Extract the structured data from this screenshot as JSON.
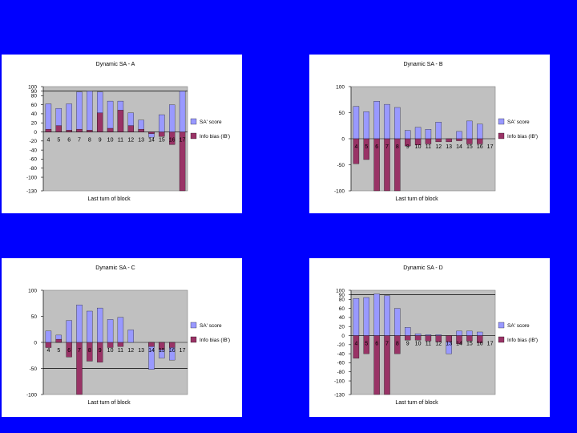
{
  "background_color": "#0000FF",
  "plot_bg": "#C0C0C0",
  "sa_color": "#9999FF",
  "ib_color": "#993366",
  "chart_data": [
    {
      "type": "bar",
      "title": "Dynamic SA - A",
      "xlabel": "Last turn of block",
      "ylabel": "",
      "ylim": [
        -130,
        100
      ],
      "yticks": [
        100,
        90,
        80,
        60,
        40,
        20,
        0,
        -20,
        -40,
        -60,
        -80,
        -100,
        -130
      ],
      "ref_line": 90,
      "categories": [
        "4",
        "5",
        "6",
        "7",
        "8",
        "9",
        "10",
        "11",
        "12",
        "13",
        "14",
        "15",
        "16",
        "17"
      ],
      "series": [
        {
          "name": "SA' score",
          "values": [
            62,
            52,
            62,
            88,
            90,
            88,
            68,
            68,
            42,
            26,
            -12,
            38,
            60,
            90
          ]
        },
        {
          "name": "Info bias (IB')",
          "values": [
            6,
            14,
            4,
            6,
            4,
            42,
            8,
            48,
            14,
            6,
            -4,
            -10,
            -28,
            -130
          ]
        }
      ],
      "legend": [
        "SA' score",
        "Info bias (IB')"
      ]
    },
    {
      "type": "bar",
      "title": "Dynamic SA - B",
      "xlabel": "Last turn of block",
      "ylabel": "",
      "ylim": [
        -100,
        100
      ],
      "yticks": [
        100,
        50,
        0,
        -50,
        -100
      ],
      "ref_line": null,
      "categories": [
        "4",
        "5",
        "6",
        "7",
        "8",
        "9",
        "10",
        "11",
        "12",
        "13",
        "14",
        "15",
        "16",
        "17"
      ],
      "series": [
        {
          "name": "SA' score",
          "values": [
            62,
            52,
            72,
            66,
            60,
            16,
            22,
            18,
            32,
            0,
            14,
            34,
            28,
            0
          ]
        },
        {
          "name": "Info bias (IB')",
          "values": [
            -48,
            -40,
            -100,
            -100,
            -100,
            -14,
            -12,
            -10,
            -6,
            -6,
            -4,
            -10,
            -10,
            0
          ]
        }
      ],
      "legend": [
        "SA' score",
        "Info bias (IB')"
      ]
    },
    {
      "type": "bar",
      "title": "Dynamic SA - C",
      "xlabel": "Last turn of block",
      "ylabel": "",
      "ylim": [
        -100,
        100
      ],
      "yticks": [
        100,
        50,
        0,
        -50,
        -100
      ],
      "ref_line": -50,
      "categories": [
        "4",
        "5",
        "6",
        "7",
        "8",
        "9",
        "10",
        "11",
        "12",
        "13",
        "14",
        "15",
        "16",
        "17"
      ],
      "series": [
        {
          "name": "SA' score",
          "values": [
            22,
            14,
            42,
            72,
            60,
            66,
            44,
            48,
            24,
            0,
            -52,
            -30,
            -34,
            0
          ]
        },
        {
          "name": "Info bias (IB')",
          "values": [
            -10,
            6,
            -28,
            -100,
            -36,
            -38,
            -10,
            -8,
            0,
            0,
            -8,
            -14,
            -10,
            0
          ]
        }
      ],
      "legend": [
        "SA' score",
        "Info bias (IB')"
      ]
    },
    {
      "type": "bar",
      "title": "Dynamic SA - D",
      "xlabel": "Last turn of block",
      "ylabel": "",
      "ylim": [
        -130,
        100
      ],
      "yticks": [
        100,
        90,
        80,
        60,
        40,
        20,
        0,
        -20,
        -40,
        -60,
        -80,
        -100,
        -130
      ],
      "ref_line": 90,
      "categories": [
        "4",
        "5",
        "6",
        "7",
        "8",
        "9",
        "10",
        "11",
        "12",
        "13",
        "14",
        "15",
        "16",
        "17"
      ],
      "series": [
        {
          "name": "SA' score",
          "values": [
            82,
            84,
            92,
            88,
            60,
            18,
            4,
            2,
            2,
            -40,
            10,
            10,
            8,
            0
          ]
        },
        {
          "name": "Info bias (IB')",
          "values": [
            -50,
            -40,
            -130,
            -130,
            -40,
            -10,
            -10,
            -12,
            -14,
            -14,
            -18,
            -12,
            -16,
            0
          ]
        }
      ],
      "legend": [
        "SA' score",
        "Info bias (IB')"
      ]
    }
  ]
}
